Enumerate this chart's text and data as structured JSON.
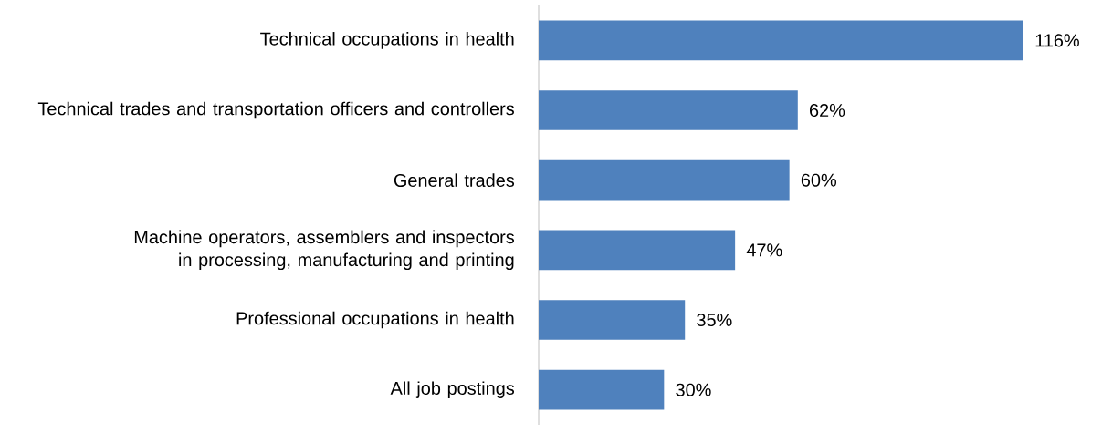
{
  "chart_data": {
    "type": "bar",
    "orientation": "horizontal",
    "categories": [
      "Technical occupations in health",
      "Technical trades and transportation officers and controllers",
      "General trades",
      "Machine operators, assemblers and inspectors in processing, manufacturing and printing",
      "Professional occupations in health",
      "All job postings"
    ],
    "values": [
      116,
      62,
      60,
      47,
      35,
      30
    ],
    "value_labels": [
      "116%",
      "62%",
      "60%",
      "47%",
      "35%",
      "30%"
    ],
    "color": "#4f81bd"
  }
}
